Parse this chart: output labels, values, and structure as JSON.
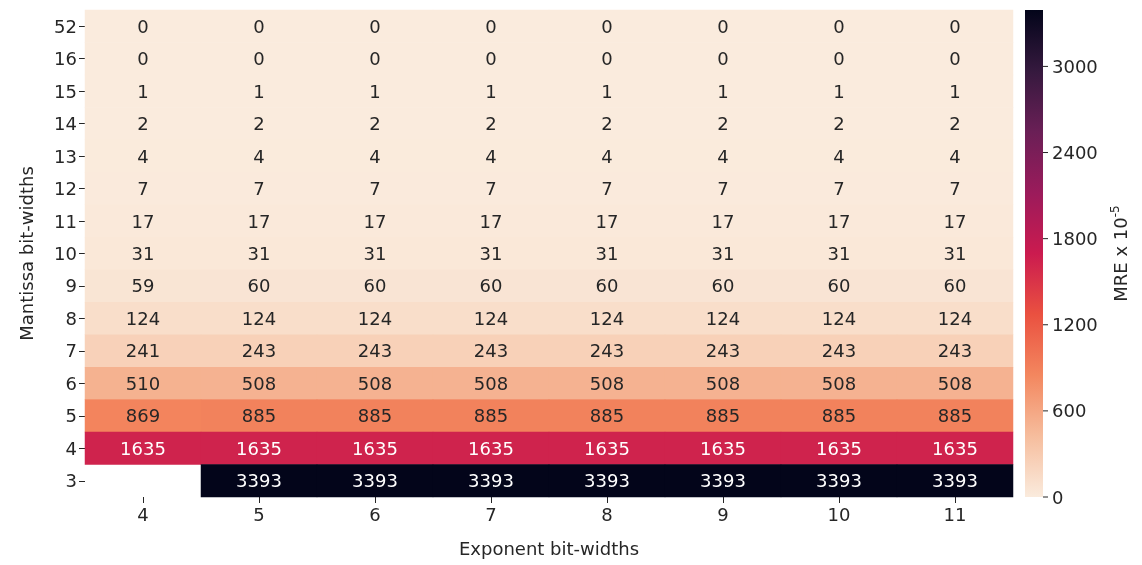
{
  "chart_data": {
    "type": "heatmap",
    "xlabel": "Exponent bit-widths",
    "ylabel": "Mantissa bit-widths",
    "clabel": "MRE x 10$^{-5}$",
    "categories": [
      "4",
      "5",
      "6",
      "7",
      "8",
      "9",
      "10",
      "11"
    ],
    "y_categories": [
      "52",
      "16",
      "15",
      "14",
      "13",
      "12",
      "11",
      "10",
      "9",
      "8",
      "7",
      "6",
      "5",
      "4",
      "3"
    ],
    "cells": [
      [
        0,
        0,
        0,
        0,
        0,
        0,
        0,
        0
      ],
      [
        0,
        0,
        0,
        0,
        0,
        0,
        0,
        0
      ],
      [
        1,
        1,
        1,
        1,
        1,
        1,
        1,
        1
      ],
      [
        2,
        2,
        2,
        2,
        2,
        2,
        2,
        2
      ],
      [
        4,
        4,
        4,
        4,
        4,
        4,
        4,
        4
      ],
      [
        7,
        7,
        7,
        7,
        7,
        7,
        7,
        7
      ],
      [
        17,
        17,
        17,
        17,
        17,
        17,
        17,
        17
      ],
      [
        31,
        31,
        31,
        31,
        31,
        31,
        31,
        31
      ],
      [
        59,
        60,
        60,
        60,
        60,
        60,
        60,
        60
      ],
      [
        124,
        124,
        124,
        124,
        124,
        124,
        124,
        124
      ],
      [
        241,
        243,
        243,
        243,
        243,
        243,
        243,
        243
      ],
      [
        510,
        508,
        508,
        508,
        508,
        508,
        508,
        508
      ],
      [
        869,
        885,
        885,
        885,
        885,
        885,
        885,
        885
      ],
      [
        1635,
        1635,
        1635,
        1635,
        1635,
        1635,
        1635,
        1635
      ],
      [
        null,
        3393,
        3393,
        3393,
        3393,
        3393,
        3393,
        3393
      ]
    ],
    "data_labels": true,
    "clim": [
      0,
      3393
    ],
    "cticks": [
      0,
      600,
      1200,
      1800,
      2400,
      3000
    ]
  }
}
